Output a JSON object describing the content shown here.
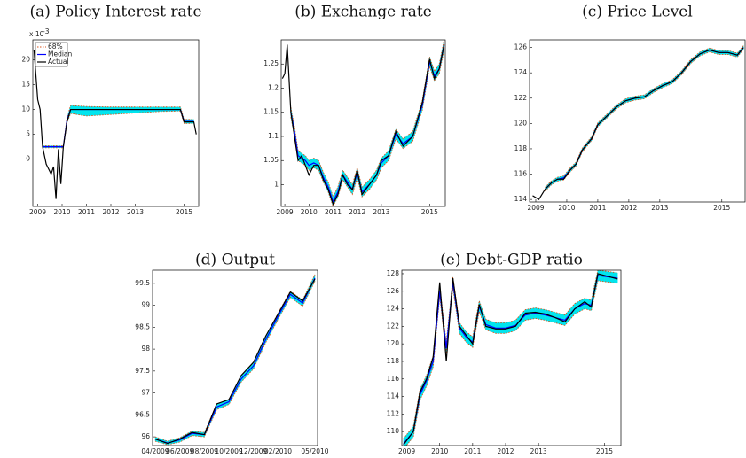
{
  "chart_data": [
    {
      "type": "line",
      "title": "(a) Policy Interest rate",
      "y_scale_label": "x 10",
      "y_scale_exponent": "-3",
      "legend": "upper left",
      "x": [
        2008.85,
        2009.0,
        2009.1,
        2009.2,
        2009.35,
        2009.45,
        2009.55,
        2009.65,
        2009.75,
        2009.85,
        2009.95,
        2010.05,
        2010.2,
        2010.35,
        2011,
        2012,
        2013,
        2014,
        2014.85,
        2015.0,
        2015.4,
        2015.5
      ],
      "xlim": [
        2008.8,
        2015.6
      ],
      "xticks": [
        2009,
        2010,
        2011,
        2012,
        2013,
        2015
      ],
      "ylim": [
        -9.5,
        24
      ],
      "yticks": [
        0,
        5,
        10,
        15,
        20
      ],
      "series": [
        {
          "name": "68%",
          "color": "#d95319",
          "fill": "#00e5ee",
          "lower": [
            null,
            null,
            null,
            2.3,
            2.3,
            2.3,
            2.3,
            2.3,
            2.3,
            2.3,
            2.3,
            2.3,
            7.3,
            9.2,
            8.7,
            9.0,
            9.3,
            9.6,
            9.7,
            7.2,
            7.2,
            null
          ],
          "upper": [
            null,
            null,
            null,
            2.7,
            2.7,
            2.7,
            2.7,
            2.7,
            2.7,
            2.7,
            2.7,
            2.7,
            8.3,
            10.8,
            10.6,
            10.5,
            10.5,
            10.5,
            10.5,
            8.0,
            8.0,
            null
          ]
        },
        {
          "name": "Median",
          "color": "#0000ff",
          "values": [
            null,
            null,
            null,
            2.5,
            2.5,
            2.5,
            2.5,
            2.5,
            2.5,
            2.5,
            2.5,
            2.5,
            7.8,
            10,
            10,
            10,
            10,
            10,
            10,
            7.6,
            7.6,
            null
          ]
        },
        {
          "name": "Actual",
          "color": "#000000",
          "values": [
            22,
            12,
            10,
            2.5,
            -1,
            -2,
            -3,
            -1.5,
            -8,
            2,
            -5,
            2.5,
            7.5,
            10,
            10,
            10,
            10,
            10,
            10,
            7.5,
            7.5,
            5
          ]
        }
      ]
    },
    {
      "type": "line",
      "title": "(b) Exchange rate",
      "x": [
        2008.9,
        2009.0,
        2009.1,
        2009.25,
        2009.4,
        2009.55,
        2009.7,
        2009.85,
        2010.0,
        2010.2,
        2010.4,
        2010.6,
        2010.8,
        2011.0,
        2011.2,
        2011.4,
        2011.6,
        2011.8,
        2012.0,
        2012.2,
        2012.5,
        2012.8,
        2013.0,
        2013.3,
        2013.6,
        2013.9,
        2014.3,
        2014.7,
        2015.0,
        2015.2,
        2015.4,
        2015.6
      ],
      "xlim": [
        2008.85,
        2015.65
      ],
      "xticks": [
        2009,
        2010,
        2011,
        2012,
        2013,
        2015
      ],
      "ylim": [
        0.955,
        1.3
      ],
      "yticks": [
        1,
        1.05,
        1.1,
        1.15,
        1.2,
        1.25
      ],
      "series": [
        {
          "color": "#d95319",
          "fill": "#00e5ee",
          "lower": [
            null,
            null,
            null,
            1.14,
            1.1,
            1.05,
            1.045,
            1.04,
            1.03,
            1.035,
            1.03,
            1.005,
            0.985,
            0.955,
            0.975,
            1.01,
            0.995,
            0.98,
            1.015,
            0.975,
            0.99,
            1.01,
            1.035,
            1.05,
            1.095,
            1.075,
            1.09,
            1.155,
            1.245,
            1.215,
            1.23,
            1.28
          ],
          "upper": [
            null,
            null,
            null,
            1.16,
            1.12,
            1.07,
            1.065,
            1.06,
            1.05,
            1.055,
            1.05,
            1.025,
            1.005,
            0.975,
            0.995,
            1.03,
            1.015,
            1.0,
            1.035,
            0.995,
            1.01,
            1.03,
            1.055,
            1.07,
            1.115,
            1.095,
            1.11,
            1.175,
            1.265,
            1.235,
            1.25,
            1.3
          ]
        },
        {
          "color": "#0000ff",
          "values": [
            null,
            null,
            null,
            1.15,
            1.11,
            1.06,
            1.055,
            1.05,
            1.04,
            1.045,
            1.04,
            1.015,
            0.995,
            0.965,
            0.985,
            1.02,
            1.005,
            0.99,
            1.025,
            0.985,
            1.0,
            1.02,
            1.045,
            1.06,
            1.105,
            1.085,
            1.1,
            1.165,
            1.255,
            1.225,
            1.24,
            1.29
          ]
        },
        {
          "color": "#000000",
          "values": [
            1.22,
            1.23,
            1.29,
            1.15,
            1.1,
            1.05,
            1.06,
            1.04,
            1.02,
            1.04,
            1.04,
            1.01,
            0.99,
            0.96,
            0.98,
            1.02,
            1.0,
            0.99,
            1.03,
            0.98,
            1.0,
            1.02,
            1.05,
            1.06,
            1.11,
            1.08,
            1.1,
            1.17,
            1.26,
            1.22,
            1.24,
            1.29
          ]
        }
      ]
    },
    {
      "type": "line",
      "title": "(c) Price Level",
      "x": [
        2008.9,
        2009.1,
        2009.3,
        2009.5,
        2009.7,
        2009.9,
        2010.1,
        2010.3,
        2010.5,
        2010.8,
        2011.0,
        2011.3,
        2011.6,
        2011.9,
        2012.2,
        2012.5,
        2012.8,
        2013.1,
        2013.4,
        2013.7,
        2014.0,
        2014.3,
        2014.6,
        2014.9,
        2015.2,
        2015.5,
        2015.7
      ],
      "xlim": [
        2008.8,
        2015.75
      ],
      "xticks": [
        2009,
        2010,
        2011,
        2012,
        2013,
        2015
      ],
      "ylim": [
        113.8,
        126.6
      ],
      "yticks": [
        114,
        116,
        118,
        120,
        122,
        124,
        126
      ],
      "series": [
        {
          "color": "#d95319",
          "fill": "#00e5ee",
          "lower": [
            null,
            null,
            114.65,
            115.15,
            115.45,
            115.55,
            116.15,
            116.65,
            117.75,
            118.65,
            119.75,
            120.45,
            121.15,
            121.65,
            121.85,
            121.95,
            122.45,
            122.85,
            123.15,
            123.85,
            124.75,
            125.35,
            125.65,
            125.45,
            125.45,
            125.25,
            125.85
          ],
          "upper": [
            null,
            null,
            114.95,
            115.45,
            115.75,
            115.85,
            116.45,
            116.95,
            118.05,
            118.95,
            120.05,
            120.75,
            121.45,
            121.95,
            122.15,
            122.25,
            122.75,
            123.15,
            123.45,
            124.15,
            125.05,
            125.65,
            125.95,
            125.75,
            125.75,
            125.55,
            126.15
          ]
        },
        {
          "color": "#0000ff",
          "values": [
            null,
            null,
            114.8,
            115.3,
            115.6,
            115.7,
            116.3,
            116.8,
            117.9,
            118.8,
            119.9,
            120.6,
            121.3,
            121.8,
            122.0,
            122.1,
            122.6,
            123.0,
            123.3,
            124.0,
            124.9,
            125.5,
            125.8,
            125.6,
            125.6,
            125.4,
            126.0
          ]
        },
        {
          "color": "#000000",
          "values": [
            114.3,
            114.0,
            114.8,
            115.3,
            115.6,
            115.6,
            116.3,
            116.8,
            117.9,
            118.8,
            119.9,
            120.6,
            121.3,
            121.8,
            122.0,
            122.1,
            122.6,
            123.0,
            123.3,
            124.0,
            124.9,
            125.5,
            125.8,
            125.6,
            125.6,
            125.4,
            126.0
          ]
        }
      ]
    },
    {
      "type": "line",
      "title": "(d) Output",
      "categories": [
        "04/2009",
        null,
        "06/2009",
        null,
        "08/2009",
        null,
        "10/2009",
        null,
        "12/2009",
        null,
        "02/2010",
        null,
        null,
        "05/2010"
      ],
      "ylim": [
        95.8,
        99.8
      ],
      "yticks": [
        96,
        96.5,
        97,
        97.5,
        98,
        98.5,
        99,
        99.5
      ],
      "series": [
        {
          "color": "#d95319",
          "fill": "#00e5ee",
          "lower": [
            95.9,
            95.82,
            95.88,
            96.03,
            96.0,
            96.62,
            96.74,
            97.25,
            97.55,
            98.15,
            98.68,
            99.18,
            98.98,
            99.55
          ],
          "upper": [
            96.0,
            95.9,
            95.98,
            96.13,
            96.1,
            96.74,
            96.86,
            97.39,
            97.69,
            98.29,
            98.82,
            99.32,
            99.12,
            99.7
          ]
        },
        {
          "color": "#0000ff",
          "values": [
            95.95,
            95.86,
            95.93,
            96.08,
            96.05,
            96.68,
            96.8,
            97.32,
            97.62,
            98.22,
            98.75,
            99.25,
            99.05,
            99.62
          ]
        },
        {
          "color": "#000000",
          "values": [
            95.95,
            95.85,
            95.95,
            96.1,
            96.05,
            96.75,
            96.85,
            97.4,
            97.7,
            98.3,
            98.8,
            99.3,
            99.1,
            99.6
          ]
        }
      ]
    },
    {
      "type": "line",
      "title": "(e) Debt-GDP ratio",
      "x": [
        2008.9,
        2009.2,
        2009.4,
        2009.6,
        2009.8,
        2010.0,
        2010.2,
        2010.4,
        2010.6,
        2010.8,
        2011.0,
        2011.2,
        2011.4,
        2011.7,
        2012.0,
        2012.3,
        2012.6,
        2012.9,
        2013.2,
        2013.5,
        2013.8,
        2014.1,
        2014.4,
        2014.6,
        2014.8,
        2015.0,
        2015.4
      ],
      "xlim": [
        2008.85,
        2015.5
      ],
      "xticks": [
        2009,
        2010,
        2011,
        2012,
        2013,
        2015
      ],
      "ylim": [
        108.4,
        128.4
      ],
      "yticks": [
        110,
        112,
        114,
        116,
        118,
        120,
        122,
        124,
        126,
        128
      ],
      "series": [
        {
          "color": "#d95319",
          "fill": "#00e5ee",
          "lower": [
            108.0,
            109.4,
            113.6,
            115.2,
            117.4,
            125.4,
            118.9,
            126.4,
            121.2,
            120.2,
            119.6,
            123.7,
            121.6,
            121.2,
            121.2,
            121.5,
            122.7,
            122.9,
            122.7,
            122.4,
            122.1,
            123.4,
            124.0,
            123.8,
            127.2,
            127.1,
            126.9
          ],
          "upper": [
            109.2,
            110.6,
            114.8,
            116.4,
            118.6,
            126.6,
            120.1,
            127.6,
            122.4,
            121.4,
            120.8,
            124.9,
            122.8,
            122.4,
            122.4,
            122.7,
            123.9,
            124.1,
            123.9,
            123.6,
            123.3,
            124.6,
            125.2,
            125.0,
            128.4,
            128.3,
            128.1
          ]
        },
        {
          "color": "#0000ff",
          "values": [
            108.6,
            110,
            114.2,
            115.8,
            118,
            126,
            119.5,
            127,
            121.8,
            120.8,
            120.2,
            124.3,
            122.2,
            121.8,
            121.8,
            122.1,
            123.3,
            123.5,
            123.3,
            123.0,
            122.7,
            124.0,
            124.6,
            124.4,
            127.8,
            127.7,
            127.5
          ]
        },
        {
          "color": "#000000",
          "values": [
            108.5,
            110,
            114.5,
            116,
            118.5,
            127,
            118,
            127.5,
            122,
            121,
            120,
            124.5,
            122,
            121.7,
            121.7,
            122,
            123.5,
            123.6,
            123.4,
            123.0,
            122.5,
            124.0,
            124.8,
            124.2,
            128,
            127.8,
            127.4
          ]
        }
      ]
    }
  ]
}
